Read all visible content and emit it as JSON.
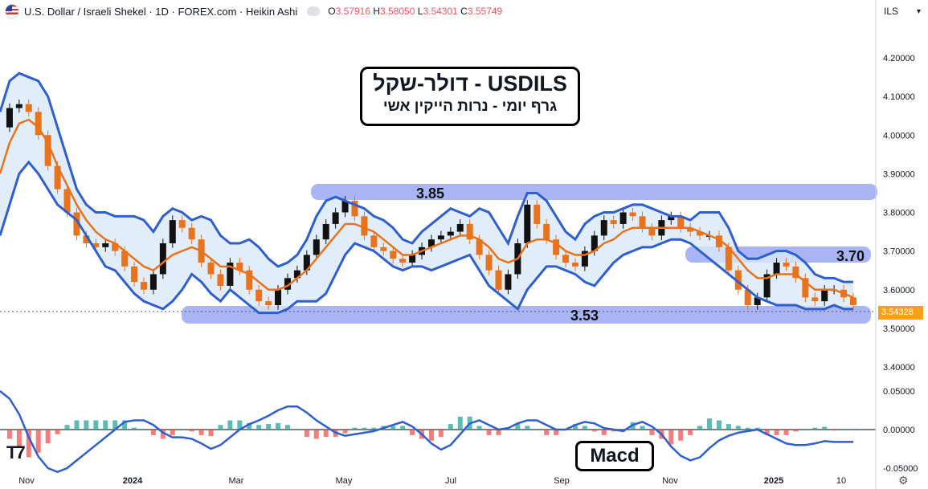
{
  "header": {
    "symbol": "U.S. Dollar / Israeli Shekel · 1D · FOREX.com · Heikin Ashi",
    "ohlc": [
      {
        "k": "O",
        "v": "3.57916"
      },
      {
        "k": "H",
        "v": "3.58050"
      },
      {
        "k": "L",
        "v": "3.54301"
      },
      {
        "k": "C",
        "v": "3.55749"
      }
    ],
    "currency": "ILS"
  },
  "annotations": {
    "title_line1": "USDILS - דולר-שקל",
    "title_line2": "גרף יומי - נרות הייקין אשי",
    "macd_label": "Macd",
    "level_high": "3.85",
    "level_mid": "3.70",
    "level_low": "3.53"
  },
  "last_price": "3.54328",
  "colors": {
    "bollinger": "#2f5fcf",
    "band_fill": "#d9e8f7",
    "ma": "#e8731c",
    "zone": "#8c9cf2",
    "candle_up": "#111111",
    "candle_down": "#e8731c",
    "hist_pos": "#26a69a",
    "hist_neg": "#ef5350",
    "price_tag": "#f7a11a"
  },
  "chart_data": {
    "type": "line",
    "ylim": [
      3.36,
      4.24
    ],
    "y_ticks": [
      "4.20000",
      "4.10000",
      "4.00000",
      "3.90000",
      "3.80000",
      "3.70000",
      "3.60000",
      "3.50000",
      "3.40000"
    ],
    "x_ticks": [
      "Nov",
      "2024",
      "Mar",
      "May",
      "Jul",
      "Sep",
      "Nov",
      "2025",
      "10"
    ],
    "macd_ticks": [
      "0.05000",
      "0.00000",
      "-0.05000"
    ],
    "macd_ylim": [
      -0.07,
      0.07
    ],
    "series": [
      {
        "values": [
          4.02,
          4.07,
          4.08,
          4.06,
          4.0,
          3.92,
          3.86,
          3.8,
          3.74,
          3.72,
          3.71,
          3.72,
          3.7,
          3.66,
          3.62,
          3.6,
          3.64,
          3.72,
          3.78,
          3.76,
          3.73,
          3.67,
          3.64,
          3.61,
          3.67,
          3.65,
          3.6,
          3.57,
          3.56,
          3.6,
          3.63,
          3.65,
          3.69,
          3.73,
          3.77,
          3.8,
          3.83,
          3.79,
          3.74,
          3.71,
          3.7,
          3.68,
          3.67,
          3.69,
          3.71,
          3.73,
          3.74,
          3.75,
          3.77,
          3.73,
          3.69,
          3.65,
          3.6,
          3.64,
          3.72,
          3.82,
          3.77,
          3.73,
          3.69,
          3.67,
          3.66,
          3.7,
          3.74,
          3.78,
          3.77,
          3.8,
          3.79,
          3.76,
          3.74,
          3.78,
          3.79,
          3.76,
          3.75,
          3.74,
          3.74,
          3.71,
          3.65,
          3.6,
          3.56,
          3.58,
          3.64,
          3.67,
          3.66,
          3.63,
          3.58,
          3.57,
          3.6,
          3.6,
          3.58,
          3.56
        ]
      },
      {
        "values": [
          3.9,
          3.98,
          4.03,
          4.04,
          4.02,
          3.98,
          3.92,
          3.87,
          3.82,
          3.78,
          3.75,
          3.73,
          3.72,
          3.7,
          3.68,
          3.66,
          3.65,
          3.67,
          3.69,
          3.7,
          3.71,
          3.7,
          3.68,
          3.66,
          3.66,
          3.65,
          3.64,
          3.62,
          3.6,
          3.6,
          3.61,
          3.63,
          3.65,
          3.68,
          3.71,
          3.74,
          3.77,
          3.77,
          3.76,
          3.75,
          3.73,
          3.71,
          3.69,
          3.69,
          3.7,
          3.71,
          3.72,
          3.73,
          3.74,
          3.74,
          3.73,
          3.71,
          3.68,
          3.67,
          3.68,
          3.72,
          3.73,
          3.73,
          3.72,
          3.7,
          3.69,
          3.69,
          3.7,
          3.72,
          3.73,
          3.75,
          3.76,
          3.76,
          3.76,
          3.76,
          3.76,
          3.76,
          3.76,
          3.75,
          3.74,
          3.73,
          3.71,
          3.68,
          3.65,
          3.63,
          3.63,
          3.64,
          3.64,
          3.64,
          3.62,
          3.6,
          3.6,
          3.6,
          3.59,
          3.58
        ]
      },
      {
        "values": [
          4.06,
          4.14,
          4.16,
          4.15,
          4.14,
          4.1,
          4.02,
          3.94,
          3.86,
          3.82,
          3.8,
          3.8,
          3.79,
          3.79,
          3.79,
          3.78,
          3.75,
          3.79,
          3.81,
          3.8,
          3.78,
          3.79,
          3.78,
          3.74,
          3.72,
          3.72,
          3.73,
          3.71,
          3.68,
          3.66,
          3.67,
          3.69,
          3.73,
          3.79,
          3.83,
          3.84,
          3.83,
          3.82,
          3.81,
          3.79,
          3.78,
          3.76,
          3.73,
          3.72,
          3.75,
          3.77,
          3.79,
          3.81,
          3.8,
          3.79,
          3.81,
          3.8,
          3.76,
          3.72,
          3.79,
          3.85,
          3.85,
          3.83,
          3.79,
          3.75,
          3.73,
          3.77,
          3.79,
          3.8,
          3.8,
          3.81,
          3.82,
          3.82,
          3.81,
          3.8,
          3.79,
          3.79,
          3.78,
          3.8,
          3.8,
          3.8,
          3.76,
          3.7,
          3.68,
          3.68,
          3.69,
          3.7,
          3.7,
          3.69,
          3.67,
          3.64,
          3.63,
          3.63,
          3.62,
          3.62
        ]
      },
      {
        "values": [
          3.74,
          3.82,
          3.9,
          3.93,
          3.9,
          3.86,
          3.82,
          3.8,
          3.78,
          3.74,
          3.7,
          3.66,
          3.65,
          3.62,
          3.59,
          3.57,
          3.56,
          3.55,
          3.57,
          3.6,
          3.64,
          3.62,
          3.59,
          3.57,
          3.6,
          3.58,
          3.56,
          3.54,
          3.54,
          3.54,
          3.55,
          3.57,
          3.57,
          3.57,
          3.59,
          3.64,
          3.69,
          3.72,
          3.71,
          3.7,
          3.68,
          3.66,
          3.65,
          3.66,
          3.66,
          3.65,
          3.66,
          3.67,
          3.68,
          3.69,
          3.65,
          3.61,
          3.59,
          3.57,
          3.55,
          3.6,
          3.63,
          3.66,
          3.66,
          3.65,
          3.64,
          3.62,
          3.61,
          3.64,
          3.67,
          3.69,
          3.7,
          3.71,
          3.71,
          3.72,
          3.73,
          3.73,
          3.72,
          3.7,
          3.68,
          3.66,
          3.64,
          3.62,
          3.6,
          3.58,
          3.57,
          3.56,
          3.56,
          3.56,
          3.55,
          3.55,
          3.55,
          3.56,
          3.55,
          3.55
        ]
      }
    ],
    "macd_series": [
      {
        "values": [
          0.05,
          0.04,
          0.02,
          -0.01,
          -0.035,
          -0.05,
          -0.055,
          -0.05,
          -0.04,
          -0.03,
          -0.02,
          -0.01,
          0.0,
          0.01,
          0.012,
          0.012,
          0.006,
          -0.004,
          -0.01,
          -0.01,
          -0.012,
          -0.018,
          -0.025,
          -0.02,
          -0.01,
          0.0,
          0.007,
          0.012,
          0.018,
          0.025,
          0.03,
          0.03,
          0.022,
          0.012,
          0.004,
          -0.004,
          -0.008,
          -0.006,
          -0.004,
          -0.002,
          0.002,
          0.006,
          0.01,
          0.004,
          -0.006,
          -0.018,
          -0.026,
          -0.02,
          -0.006,
          0.008,
          0.012,
          0.006,
          0.0,
          0.002,
          0.008,
          0.012,
          0.012,
          0.006,
          0.0,
          0.0,
          0.006,
          0.01,
          0.008,
          0.002,
          0.0,
          -0.002,
          0.006,
          0.01,
          0.004,
          -0.006,
          -0.022,
          -0.034,
          -0.04,
          -0.036,
          -0.024,
          -0.014,
          -0.008,
          -0.004,
          -0.002,
          0.0,
          -0.006,
          -0.012,
          -0.018,
          -0.02,
          -0.02,
          -0.018,
          -0.015,
          -0.016,
          -0.016,
          -0.016
        ]
      }
    ]
  }
}
